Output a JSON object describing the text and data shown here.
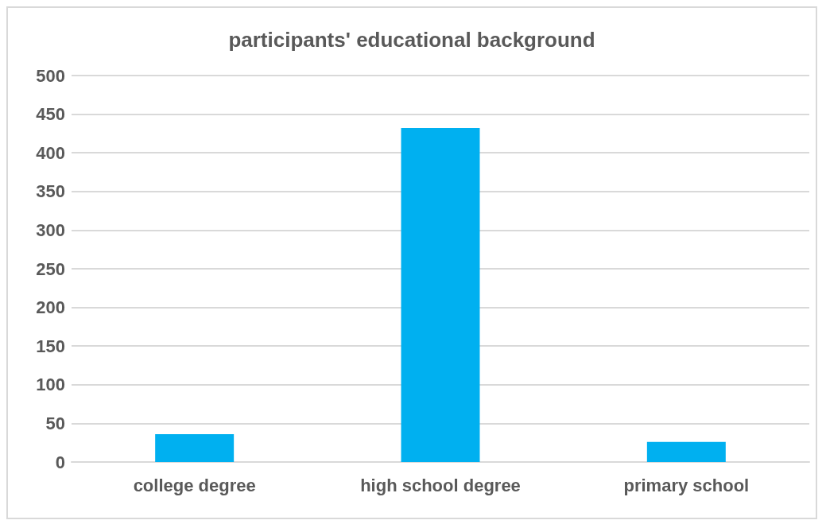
{
  "chart_data": {
    "type": "bar",
    "title": "participants' educational background",
    "categories": [
      "college degree",
      "high school degree",
      "primary school"
    ],
    "values": [
      36,
      432,
      26
    ],
    "color": "#00b0f0",
    "ylim": [
      0,
      500
    ],
    "yticks": [
      0,
      50,
      100,
      150,
      200,
      250,
      300,
      350,
      400,
      450,
      500
    ],
    "grid": "y"
  }
}
